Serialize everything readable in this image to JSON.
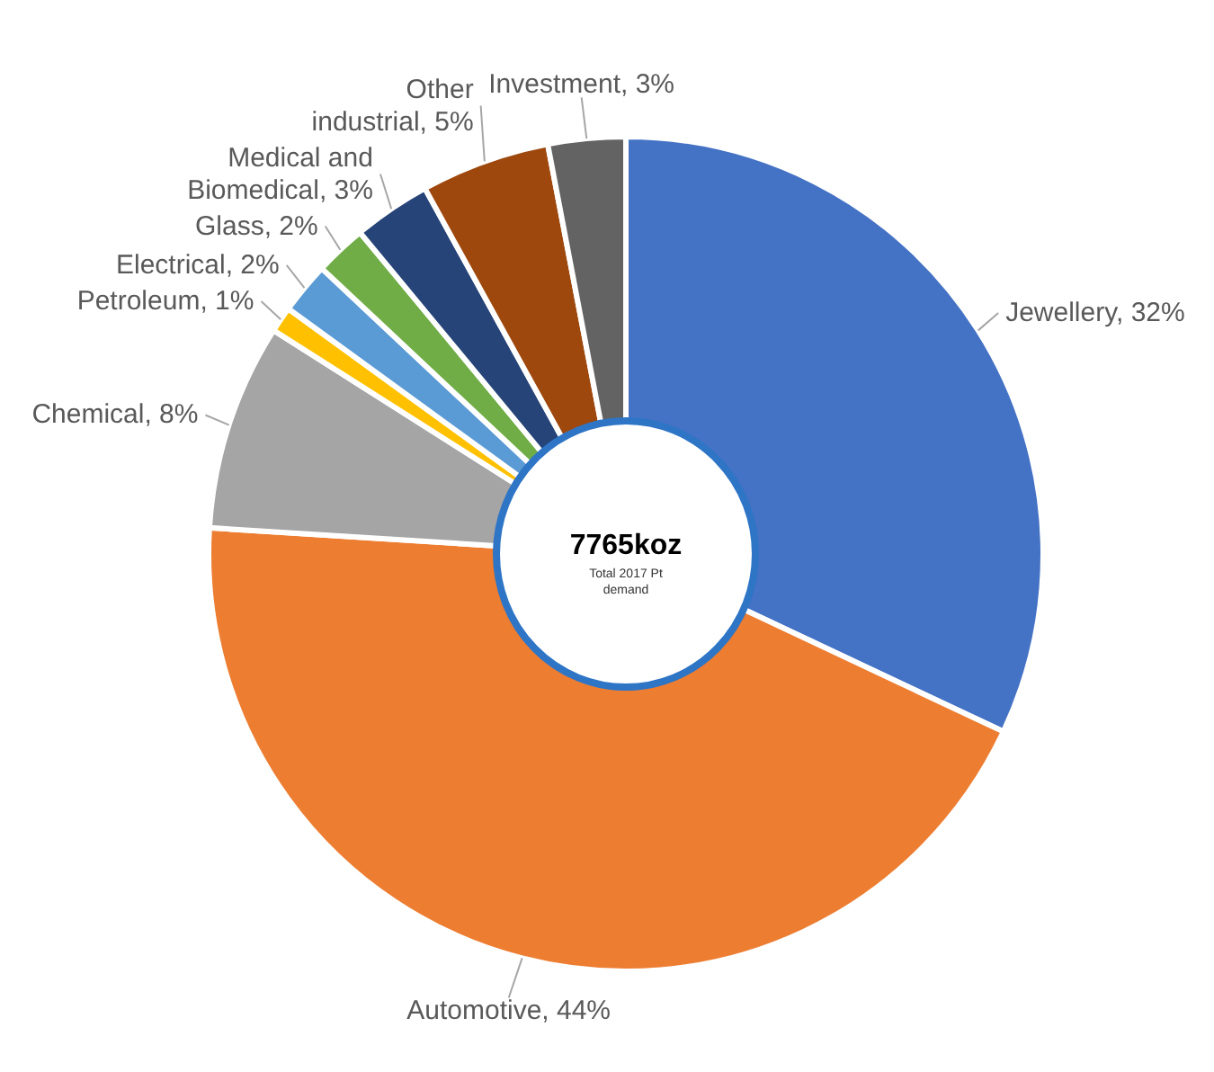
{
  "chart_data": {
    "type": "donut",
    "categories": [
      "Jewellery",
      "Automotive",
      "Chemical",
      "Petroleum",
      "Electrical",
      "Glass",
      "Medical and Biomedical",
      "Other industrial",
      "Investment"
    ],
    "values": [
      32,
      44,
      8,
      1,
      2,
      2,
      3,
      5,
      3
    ],
    "value_labels": [
      "32%",
      "44%",
      "8%",
      "1%",
      "2%",
      "2%",
      "3%",
      "5%",
      "3%"
    ],
    "colors": [
      "#4472c4",
      "#ed7d31",
      "#a5a5a5",
      "#ffc000",
      "#5b9bd5",
      "#70ad47",
      "#264478",
      "#9e480e",
      "#636363"
    ],
    "annotations": [
      "7765koz",
      "Total 2017 Pt demand"
    ],
    "legend": false
  }
}
